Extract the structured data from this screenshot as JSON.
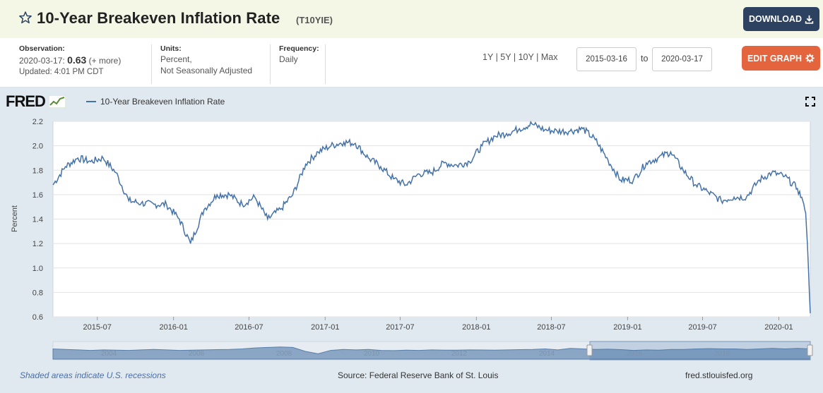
{
  "header": {
    "title": "10-Year Breakeven Inflation Rate",
    "series_id": "(T10YIE)",
    "download_label": "DOWNLOAD"
  },
  "meta": {
    "observation_label": "Observation:",
    "observation_date": "2020-03-17:",
    "observation_value": "0.63",
    "more_link": "(+ more)",
    "updated": "Updated: 4:01 PM CDT",
    "units_label": "Units:",
    "units_line1": "Percent,",
    "units_line2": "Not Seasonally Adjusted",
    "frequency_label": "Frequency:",
    "frequency": "Daily"
  },
  "range": {
    "links": [
      "1Y",
      "5Y",
      "10Y",
      "Max"
    ],
    "start_date": "2015-03-16",
    "to_label": "to",
    "end_date": "2020-03-17",
    "edit_label": "EDIT GRAPH"
  },
  "graph": {
    "logo": "FRED",
    "legend": "10-Year Breakeven Inflation Rate",
    "line_color": "#4572a7"
  },
  "chart_data": {
    "type": "line",
    "ylabel": "Percent",
    "ylim": [
      0.6,
      2.2
    ],
    "yticks": [
      "2.2",
      "2.0",
      "1.8",
      "1.6",
      "1.4",
      "1.2",
      "1.0",
      "0.8",
      "0.6"
    ],
    "xticks": [
      "2015-07",
      "2016-01",
      "2016-07",
      "2017-01",
      "2017-07",
      "2018-01",
      "2018-07",
      "2019-01",
      "2019-07",
      "2020-01"
    ],
    "navigator_labels": [
      "2004",
      "2006",
      "2008",
      "2010",
      "2012",
      "2014",
      "2016",
      "2018"
    ],
    "series": [
      {
        "name": "10-Year Breakeven Inflation Rate",
        "x": [
          "2015-03-16",
          "2015-04-15",
          "2015-05-15",
          "2015-06-15",
          "2015-07-15",
          "2015-08-15",
          "2015-09-15",
          "2015-10-15",
          "2015-11-15",
          "2015-12-15",
          "2016-01-15",
          "2016-02-11",
          "2016-03-15",
          "2016-04-15",
          "2016-05-15",
          "2016-06-15",
          "2016-07-15",
          "2016-08-15",
          "2016-09-15",
          "2016-10-15",
          "2016-11-15",
          "2016-12-15",
          "2017-01-15",
          "2017-02-15",
          "2017-03-15",
          "2017-04-15",
          "2017-05-15",
          "2017-06-15",
          "2017-07-15",
          "2017-08-15",
          "2017-09-15",
          "2017-10-15",
          "2017-11-15",
          "2017-12-15",
          "2018-01-15",
          "2018-02-15",
          "2018-03-15",
          "2018-04-15",
          "2018-05-15",
          "2018-06-15",
          "2018-07-15",
          "2018-08-15",
          "2018-09-15",
          "2018-10-15",
          "2018-11-15",
          "2018-12-15",
          "2019-01-15",
          "2019-02-15",
          "2019-03-15",
          "2019-04-15",
          "2019-05-15",
          "2019-06-15",
          "2019-07-15",
          "2019-08-15",
          "2019-09-15",
          "2019-10-15",
          "2019-11-15",
          "2019-12-15",
          "2020-01-15",
          "2020-02-15",
          "2020-02-28",
          "2020-03-06",
          "2020-03-10",
          "2020-03-13",
          "2020-03-17"
        ],
        "y": [
          1.68,
          1.83,
          1.9,
          1.87,
          1.9,
          1.78,
          1.55,
          1.53,
          1.52,
          1.52,
          1.4,
          1.2,
          1.48,
          1.6,
          1.6,
          1.52,
          1.58,
          1.4,
          1.48,
          1.6,
          1.85,
          1.95,
          2.0,
          2.03,
          2.02,
          1.9,
          1.83,
          1.73,
          1.68,
          1.77,
          1.78,
          1.86,
          1.84,
          1.87,
          2.0,
          2.08,
          2.1,
          2.14,
          2.18,
          2.13,
          2.12,
          2.12,
          2.14,
          2.05,
          1.88,
          1.72,
          1.72,
          1.86,
          1.9,
          1.95,
          1.8,
          1.68,
          1.62,
          1.55,
          1.58,
          1.58,
          1.72,
          1.78,
          1.75,
          1.65,
          1.55,
          1.45,
          1.2,
          0.95,
          0.63
        ]
      }
    ]
  }
}
